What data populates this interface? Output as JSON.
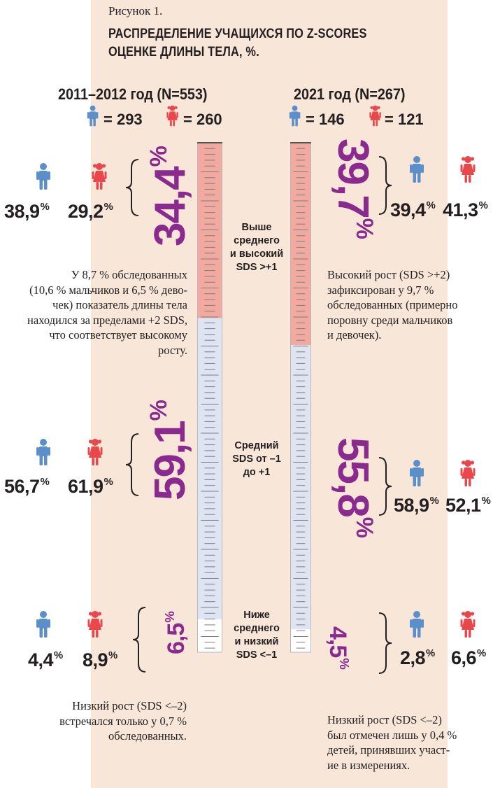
{
  "figure": {
    "label": "Рисунок 1.",
    "title": [
      "РАСПРЕДЕЛЕНИЕ УЧАЩИХСЯ ПО Z-SCORES",
      "ОЦЕНКЕ ДЛИНЫ ТЕЛА, %."
    ]
  },
  "colors": {
    "band": "#f8e6d8",
    "above": "#f2a9a0",
    "middle": "#dde5f3",
    "below": "#ffffff",
    "accent": "#8a2a8f",
    "boy_icon": "#5b8fc9",
    "girl_icon": "#e8474c"
  },
  "icons": {
    "boy": "boy-icon",
    "girl": "girl-icon"
  },
  "chart_data": [
    {
      "type": "bar",
      "orientation": "vertical-stacked",
      "title": "2011–2012 год (N=553)",
      "boys_count": "= 293",
      "girls_count": "= 260",
      "categories": [
        "Выше среднего и высокий SDS >+1",
        "Средний SDS от –1 до +1",
        "Ниже среднего и низкий SDS <–1"
      ],
      "totals": [
        34.4,
        59.1,
        6.5
      ],
      "totals_labels": [
        "34,4",
        "59,1",
        "6,5"
      ],
      "boys": [
        38.9,
        56.7,
        4.4
      ],
      "boys_labels": [
        "38,9",
        "56,7",
        "4,4"
      ],
      "girls": [
        29.2,
        61.9,
        8.9
      ],
      "girls_labels": [
        "29,2",
        "61,9",
        "8,9"
      ],
      "ylim": [
        0,
        100
      ]
    },
    {
      "type": "bar",
      "orientation": "vertical-stacked",
      "title": "2021 год (N=267)",
      "boys_count": "= 146",
      "girls_count": "= 121",
      "categories": [
        "Выше среднего и высокий SDS >+1",
        "Средний SDS от –1 до +1",
        "Ниже среднего и низкий SDS <–1"
      ],
      "totals": [
        39.7,
        55.8,
        4.5
      ],
      "totals_labels": [
        "39,7",
        "55,8",
        "4,5"
      ],
      "boys": [
        39.4,
        58.9,
        2.8
      ],
      "boys_labels": [
        "39,4",
        "58,9",
        "2,8"
      ],
      "girls": [
        41.3,
        52.1,
        6.6
      ],
      "girls_labels": [
        "41,3",
        "52,1",
        "6,6"
      ],
      "ylim": [
        0,
        100
      ]
    }
  ],
  "categories_text": {
    "above": [
      "Выше",
      "среднего",
      "и высокий",
      "SDS >+1"
    ],
    "middle": [
      "Средний",
      "SDS от –1",
      "до +1"
    ],
    "below": [
      "Ниже",
      "среднего",
      "и низкий",
      "SDS <–1"
    ]
  },
  "percent_sign": "%",
  "notes": {
    "left_top": [
      "У 8,7 % обследованных",
      "(10,6 % мальчиков и 6,5 % дево-",
      "чек) показатель длины тела",
      "находился за пределами +2 SDS,",
      "что соответствует высокому",
      "росту."
    ],
    "right_top": [
      "Высокий рост (SDS >+2)",
      "зафиксирован у 9,7 %",
      "обследованных (примерно",
      "поровну среди мальчиков",
      "и девочек)."
    ],
    "left_bottom": [
      "Низкий рост (SDS <–2)",
      "встречался только у 0,7 %",
      "обследованных."
    ],
    "right_bottom": [
      "Низкий рост (SDS <–2)",
      "был отмечен лишь у 0,4 %",
      "детей, принявших участ-",
      "ие в измерениях."
    ]
  }
}
